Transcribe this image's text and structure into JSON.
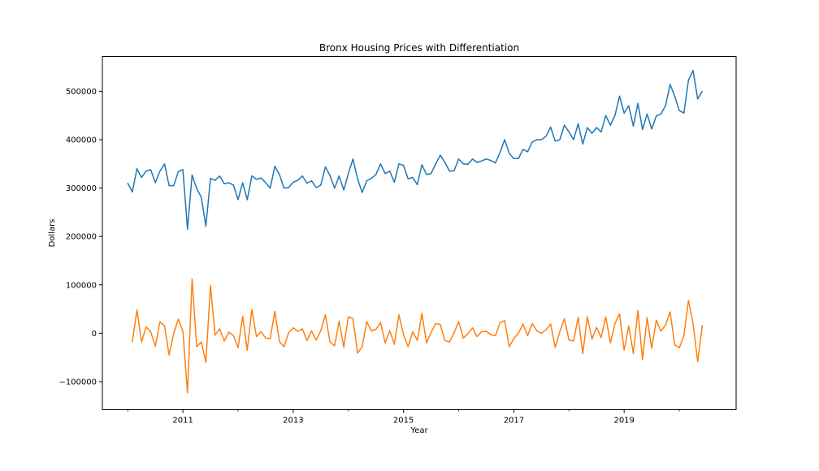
{
  "chart_data": {
    "type": "line",
    "title": "Bronx Housing Prices with Differentiation",
    "xlabel": "Year",
    "ylabel": "Dollars",
    "xlim": [
      2009.54,
      2021.03
    ],
    "ylim": [
      -158000,
      572000
    ],
    "x_ticks": [
      2011,
      2013,
      2015,
      2017,
      2019
    ],
    "x_minor_ticks": [
      2010,
      2012,
      2014,
      2016,
      2018,
      2020
    ],
    "y_ticks": [
      -100000,
      0,
      100000,
      200000,
      300000,
      400000,
      500000
    ],
    "grid": false,
    "legend": "none",
    "x_start": 2010.0,
    "x_step_per_point": 0.08333,
    "series": [
      {
        "color": "#1f77b4",
        "values": [
          310000,
          292000,
          340000,
          322000,
          335000,
          338000,
          311000,
          335000,
          350000,
          305000,
          305000,
          334000,
          338000,
          215000,
          327000,
          299000,
          281000,
          221000,
          320000,
          316000,
          325000,
          309000,
          311000,
          306000,
          276000,
          311000,
          276000,
          325000,
          318000,
          321000,
          311000,
          300000,
          345000,
          328000,
          300000,
          301000,
          312000,
          316000,
          325000,
          310000,
          315000,
          301000,
          306000,
          344000,
          326000,
          300000,
          325000,
          296000,
          330000,
          360000,
          319000,
          291000,
          315000,
          320000,
          328000,
          350000,
          330000,
          335000,
          312000,
          350000,
          347000,
          319000,
          322000,
          307000,
          348000,
          328000,
          330000,
          350000,
          368000,
          353000,
          335000,
          336000,
          360000,
          350000,
          349000,
          360000,
          353000,
          356000,
          360000,
          357000,
          352000,
          374000,
          400000,
          372000,
          361000,
          361000,
          380000,
          375000,
          395000,
          400000,
          400000,
          407000,
          426000,
          397000,
          400000,
          430000,
          416000,
          400000,
          433000,
          391000,
          425000,
          413000,
          425000,
          416000,
          450000,
          430000,
          450000,
          490000,
          455000,
          470000,
          428000,
          475000,
          421000,
          453000,
          422000,
          449000,
          453000,
          470000,
          514000,
          490000,
          460000,
          455000,
          523000,
          543000,
          484000,
          500000
        ]
      },
      {
        "color": "#ff7f0e",
        "values": [
          null,
          -18000,
          48000,
          -18000,
          13000,
          3000,
          -27000,
          24000,
          15000,
          -45000,
          0,
          29000,
          4000,
          -123000,
          112000,
          -28000,
          -18000,
          -60000,
          99000,
          -4000,
          9000,
          -16000,
          2000,
          -5000,
          -30000,
          35000,
          -35000,
          49000,
          -7000,
          3000,
          -10000,
          -11000,
          45000,
          -17000,
          -28000,
          1000,
          11000,
          4000,
          9000,
          -15000,
          5000,
          -14000,
          5000,
          38000,
          -18000,
          -26000,
          25000,
          -29000,
          34000,
          30000,
          -41000,
          -28000,
          24000,
          5000,
          8000,
          22000,
          -20000,
          5000,
          -23000,
          38000,
          -3000,
          -28000,
          3000,
          -15000,
          41000,
          -20000,
          2000,
          20000,
          18000,
          -15000,
          -18000,
          1000,
          24000,
          -10000,
          -1000,
          11000,
          -7000,
          3000,
          4000,
          -3000,
          -5000,
          22000,
          26000,
          -28000,
          -11000,
          0,
          19000,
          -5000,
          20000,
          5000,
          0,
          7000,
          19000,
          -29000,
          3000,
          30000,
          -14000,
          -16000,
          33000,
          -42000,
          34000,
          -12000,
          12000,
          -9000,
          34000,
          -20000,
          20000,
          40000,
          -35000,
          15000,
          -42000,
          47000,
          -54000,
          32000,
          -31000,
          27000,
          4000,
          17000,
          44000,
          -24000,
          -30000,
          -5000,
          68000,
          20000,
          -59000,
          16000
        ]
      }
    ]
  }
}
